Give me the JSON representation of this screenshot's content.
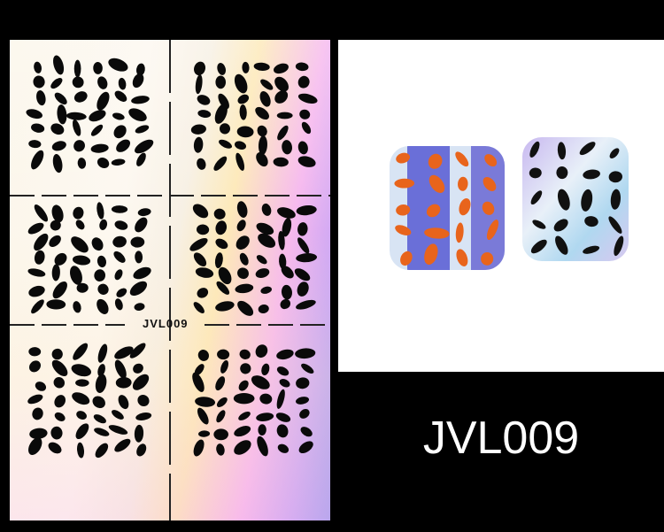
{
  "product": {
    "code": "JVL009",
    "sheet_code": "JVL009"
  },
  "colors": {
    "background": "#000000",
    "spots": "#0a0a0a",
    "nail_orange": "#e8641c",
    "nail_blue": "#6a6fd8"
  }
}
